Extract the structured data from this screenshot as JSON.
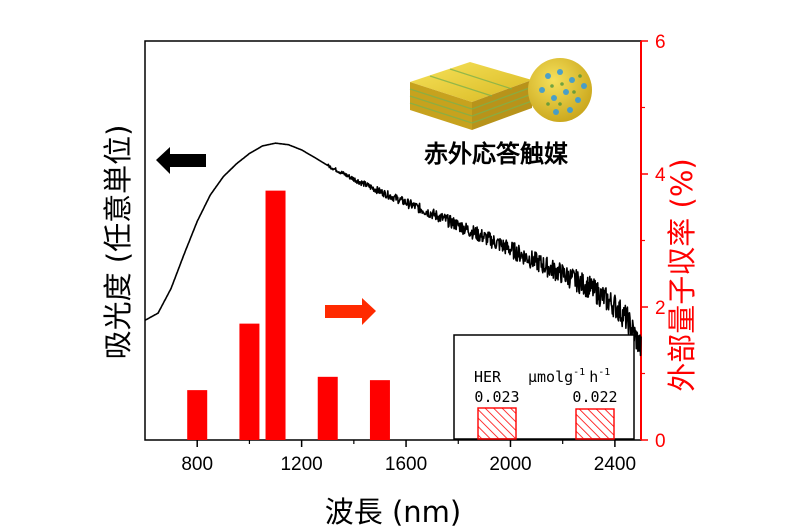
{
  "chart_data": {
    "type": "bar+line",
    "x_axis": {
      "label": "波長 (nm)",
      "ticks": [
        800,
        1200,
        1600,
        2000,
        2400
      ],
      "range": [
        600,
        2500
      ]
    },
    "y_left": {
      "label": "吸光度 (任意単位)",
      "ticks": [],
      "unit": "arbitrary"
    },
    "y_right": {
      "label": "外部量子収率 (%)",
      "ticks": [
        0,
        2,
        4,
        6
      ],
      "range": [
        0,
        6
      ],
      "color": "#ff0000"
    },
    "series": [
      {
        "name": "absorbance",
        "kind": "line",
        "axis": "left",
        "color": "#000000",
        "x": [
          600,
          650,
          700,
          750,
          800,
          850,
          900,
          950,
          1000,
          1050,
          1100,
          1150,
          1200,
          1250,
          1300,
          1400,
          1500,
          1600,
          1700,
          1800,
          1900,
          2000,
          2100,
          2200,
          2300,
          2400,
          2450,
          2500
        ],
        "y": [
          0.3,
          0.318,
          0.38,
          0.466,
          0.548,
          0.614,
          0.66,
          0.692,
          0.718,
          0.737,
          0.744,
          0.74,
          0.727,
          0.708,
          0.688,
          0.654,
          0.623,
          0.595,
          0.567,
          0.538,
          0.508,
          0.478,
          0.446,
          0.416,
          0.384,
          0.337,
          0.3,
          0.23
        ]
      },
      {
        "name": "EQE",
        "kind": "bar",
        "axis": "right",
        "color": "#ff0000",
        "x": [
          800,
          1000,
          1100,
          1300,
          1500
        ],
        "values": [
          0.75,
          1.75,
          3.75,
          0.95,
          0.9
        ]
      }
    ],
    "arrows": [
      {
        "direction": "left",
        "points_to": "left-axis",
        "color": "#000000"
      },
      {
        "direction": "right",
        "points_to": "right-axis",
        "color": "#ff3300"
      }
    ]
  },
  "figure": {
    "catalyst_label": "赤外応答触媒",
    "inset": {
      "title": "HER",
      "unit_base": "μmolg",
      "unit_exp1": "-1",
      "unit_h": "h",
      "unit_exp2": "-1",
      "values": [
        0.023,
        0.022
      ],
      "bar_value_labels": [
        "0.023",
        "0.022"
      ],
      "bar_color": "#ff0000"
    }
  }
}
